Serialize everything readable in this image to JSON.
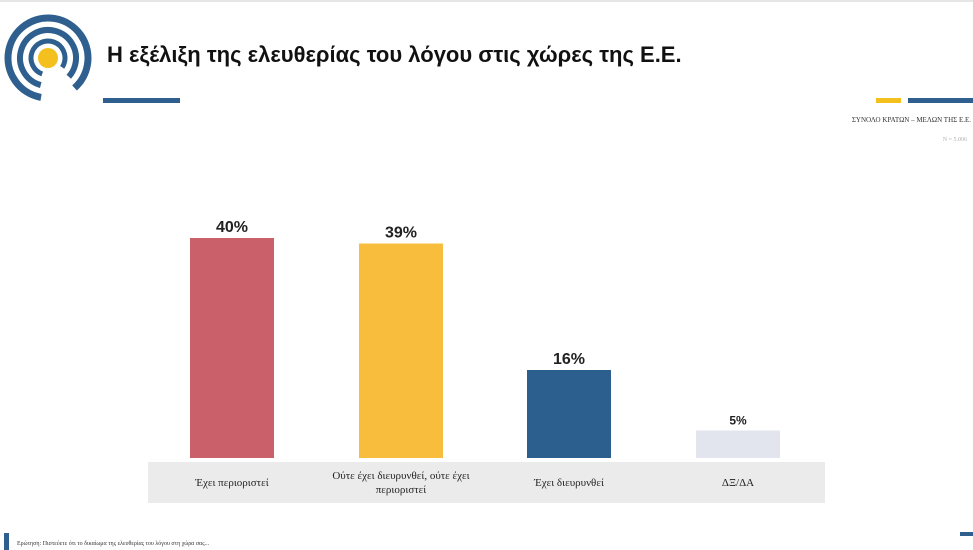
{
  "header": {
    "title": "Η εξέλιξη της ελευθερίας του λόγου στις χώρες της Ε.Ε.",
    "subtitle": "ΣΥΝΟΛΟ ΚΡΑΤΩΝ – ΜΕΛΩΝ ΤΗΣ Ε.Ε.",
    "sample": "N = 5.006"
  },
  "brand": {
    "primary": "#2f5f8e",
    "accent": "#f4c01e"
  },
  "chart_data": {
    "type": "bar",
    "categories": [
      "Έχει περιοριστεί",
      "Ούτε έχει διευρυνθεί, ούτε έχει περιοριστεί",
      "Έχει διευρυνθεί",
      "ΔΞ/ΔΑ"
    ],
    "values": [
      40,
      39,
      16,
      5
    ],
    "value_labels": [
      "40%",
      "39%",
      "16%",
      "5%"
    ],
    "colors": [
      "#c9606a",
      "#f8bd3c",
      "#2c5f8d",
      "#e2e5ee"
    ],
    "ylim": [
      0,
      40
    ],
    "grid": false,
    "legend": "none"
  },
  "footer": {
    "question": "Ερώτηση: Πιστεύετε ότι το δικαίωμα της ελευθερίας του λόγου στη χώρα σας..."
  }
}
